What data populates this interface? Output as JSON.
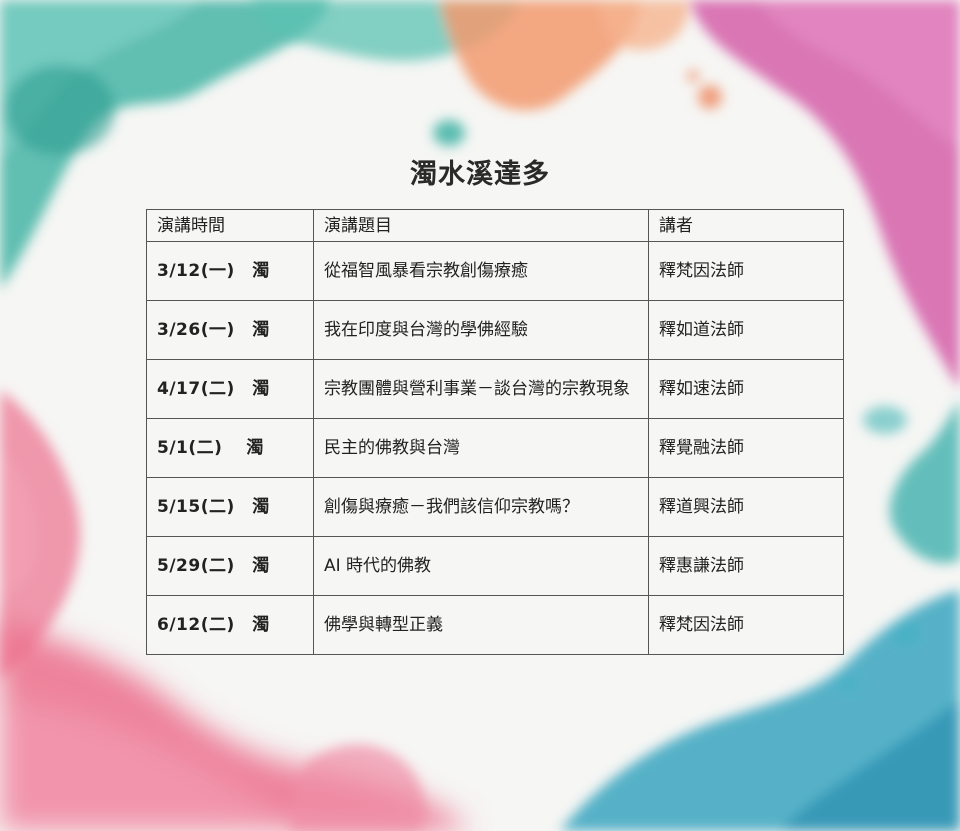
{
  "title": "濁水溪達多",
  "table": {
    "headers": [
      "演講時間",
      "演講題目",
      "講者"
    ],
    "rows": [
      {
        "date": "3/12(一)　濁",
        "topic": "從福智風暴看宗教創傷療癒",
        "speaker": "釋梵因法師"
      },
      {
        "date": "3/26(一)　濁",
        "topic": "我在印度與台灣的學佛經驗",
        "speaker": "釋如道法師"
      },
      {
        "date": "4/17(二)　濁",
        "topic": "宗教團體與營利事業－談台灣的宗教現象",
        "speaker": "釋如速法師"
      },
      {
        "date": "5/1(二)　 濁",
        "topic": "民主的佛教與台灣",
        "speaker": "釋覺融法師"
      },
      {
        "date": "5/15(二)　濁",
        "topic": "創傷與療癒－我們該信仰宗教嗎？",
        "speaker": "釋道興法師"
      },
      {
        "date": "5/29(二)　濁",
        "topic": "AI 時代的佛教",
        "speaker": "釋惠謙法師"
      },
      {
        "date": "6/12(二)　濁",
        "topic": "佛學與轉型正義",
        "speaker": "釋梵因法師"
      }
    ]
  },
  "colors": {
    "teal": "#3fb3a4",
    "orange": "#f0926a",
    "magenta": "#d95ba8",
    "pink": "#ee7f9a",
    "blue": "#3aa6bf",
    "border": "#555555"
  }
}
